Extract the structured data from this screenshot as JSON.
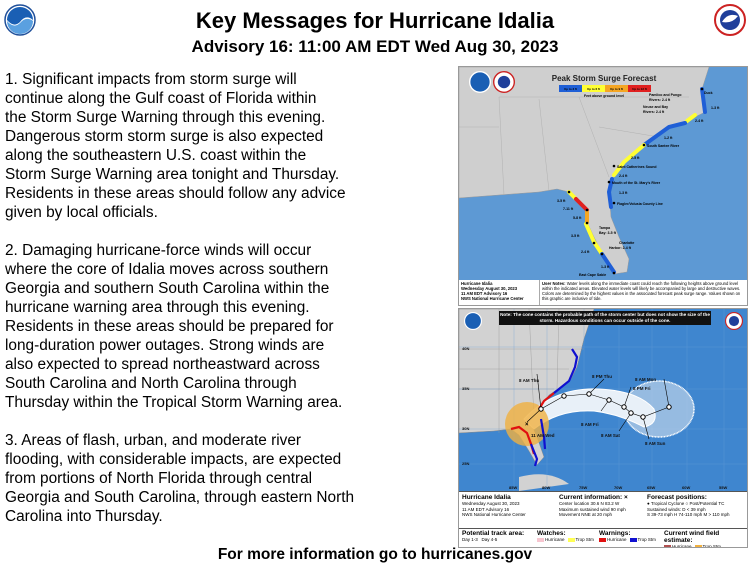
{
  "header": {
    "title": "Key Messages for Hurricane Idalia",
    "subtitle": "Advisory 16:  11:00 AM EDT Wed Aug 30, 2023",
    "left_logo": "noaa-logo",
    "right_logo": "nws-logo"
  },
  "messages": [
    {
      "lines": [
        "1. Significant impacts from storm surge will",
        "continue along the Gulf coast of Florida within",
        "the Storm Surge Warning through this evening.",
        "Dangerous storm storm surge is also expected",
        "along the southeastern U.S. coast within the",
        "Storm Surge Warning area tonight and Thursday.",
        "Residents in these areas should follow any advice",
        "given by local officials."
      ]
    },
    {
      "lines": [
        "2. Damaging hurricane-force winds will occur",
        "where the core of Idalia moves across southern",
        "Georgia and southern South Carolina within the",
        "hurricane warning area through this evening.",
        "Residents in these areas should be prepared for",
        "long-duration power outages. Strong winds are",
        "also expected to spread northeastward across",
        "South Carolina and North Carolina through",
        "Thursday within the Tropical Storm Warning area."
      ]
    },
    {
      "lines": [
        "3. Areas of flash, urban, and moderate river",
        "flooding, with considerable impacts, are expected",
        "from portions of North Florida through central",
        "Georgia and South Carolina, through eastern North",
        "Carolina into Thursday."
      ]
    }
  ],
  "footer": "For more information go to hurricanes.gov",
  "surge_map": {
    "title": "Peak Storm Surge Forecast",
    "legend": [
      {
        "label": "Up to 3 ft",
        "color": "#1f5fd6"
      },
      {
        "label": "Up to 6 ft",
        "color": "#ffff33"
      },
      {
        "label": "Up to 9 ft",
        "color": "#f5a623"
      },
      {
        "label": "Up to 12 ft",
        "color": "#e02020"
      }
    ],
    "legend_caption": "Feet above ground level",
    "labels": {
      "pamlico": "Pamlico and Pungo",
      "pamlico2": "Rivers: 2-4 ft",
      "neuse": "Neuse and Bay",
      "neuse2": "Rivers: 2-4 ft",
      "tampa": "Tampa",
      "tampa2": "Bay: 3-5 ft",
      "charlotte": "Charlotte",
      "charlotte2": "Harbor: 2-4 ft",
      "duck": "Duck",
      "ssr": "South Santee River",
      "sci": "Saint Catherines Sound",
      "stm": "Mouth of the St. Mary's River",
      "flagler": "Flagler/Volusia County Line",
      "ecs": "East Cape Sable",
      "v1": "1-3 ft",
      "v2": "2-4 ft",
      "v3": "1-2 ft",
      "v4": "2-5 ft",
      "v5": "2-4 ft",
      "v6": "1-3 ft",
      "v7": "3-5 ft",
      "v8": "7-11 ft",
      "v9": "5-8 ft",
      "v10": "3-5 ft",
      "v11": "2-4 ft",
      "v12": "1-3 ft"
    },
    "info": [
      "Hurricane Idalia",
      "Wednesday August 30, 2023",
      "11 AM EDT Advisory 16",
      "NWS National Hurricane Center"
    ],
    "user_notes_label": "User Notes:",
    "user_notes": "Water levels along the immediate coast could reach the following heights above ground level within the indicated areas. Elevated water levels will likely be accompanied by large and destructive waves. Colors are determined by the highest values in the associated forecast peak surge range. Values shown on this graphic are inclusive of tide."
  },
  "cone_map": {
    "note": "Note: The cone contains the probable path of the storm center but does not show the size of the storm. Hazardous conditions can occur outside of the cone.",
    "positions": {
      "p1": "11 AM Wed",
      "p2": "8 AM Thu",
      "p3": "8 PM Thu",
      "p4": "8 AM Fri",
      "p5": "8 PM Fri",
      "p6": "8 AM Sat",
      "p7": "8 AM Sun",
      "p8": "8 AM Mon"
    },
    "lat_labels": [
      "40N",
      "35N",
      "30N",
      "25N"
    ],
    "lon_labels": [
      "85W",
      "80W",
      "75W",
      "70W",
      "65W",
      "60W",
      "55W"
    ],
    "info": [
      "Hurricane Idalia",
      "Wednesday August 30, 2023",
      "11 AM EDT Advisory 16",
      "NWS National Hurricane Center"
    ],
    "current_title": "Current information: ×",
    "current": [
      "Center location 30.6 N 83.2 W",
      "Maximum sustained wind 90 mph",
      "Movement NNE at 20 mph"
    ],
    "forecast_title": "Forecast positions:",
    "forecast": [
      "● Tropical Cyclone   ○ Post/Potential TC",
      "Sustained winds:       D < 39 mph",
      "S 39-73 mph  H 74-110 mph  M > 110 mph"
    ],
    "track_title": "Potential track area:",
    "track_items": [
      "Day 1-3",
      "Day 4-5"
    ],
    "watches_title": "Watches:",
    "watches": [
      {
        "label": "Hurricane",
        "color": "#f7c6d0"
      },
      {
        "label": "Trop Stm",
        "color": "#ffff55"
      }
    ],
    "warnings_title": "Warnings:",
    "warnings": [
      {
        "label": "Hurricane",
        "color": "#e01010"
      },
      {
        "label": "Trop Stm",
        "color": "#1010d0"
      }
    ],
    "wind_title": "Current wind field estimate:",
    "wind": [
      {
        "label": "Hurricane",
        "color": "#b05050"
      },
      {
        "label": "Trop Stm",
        "color": "#f0b040"
      }
    ]
  }
}
